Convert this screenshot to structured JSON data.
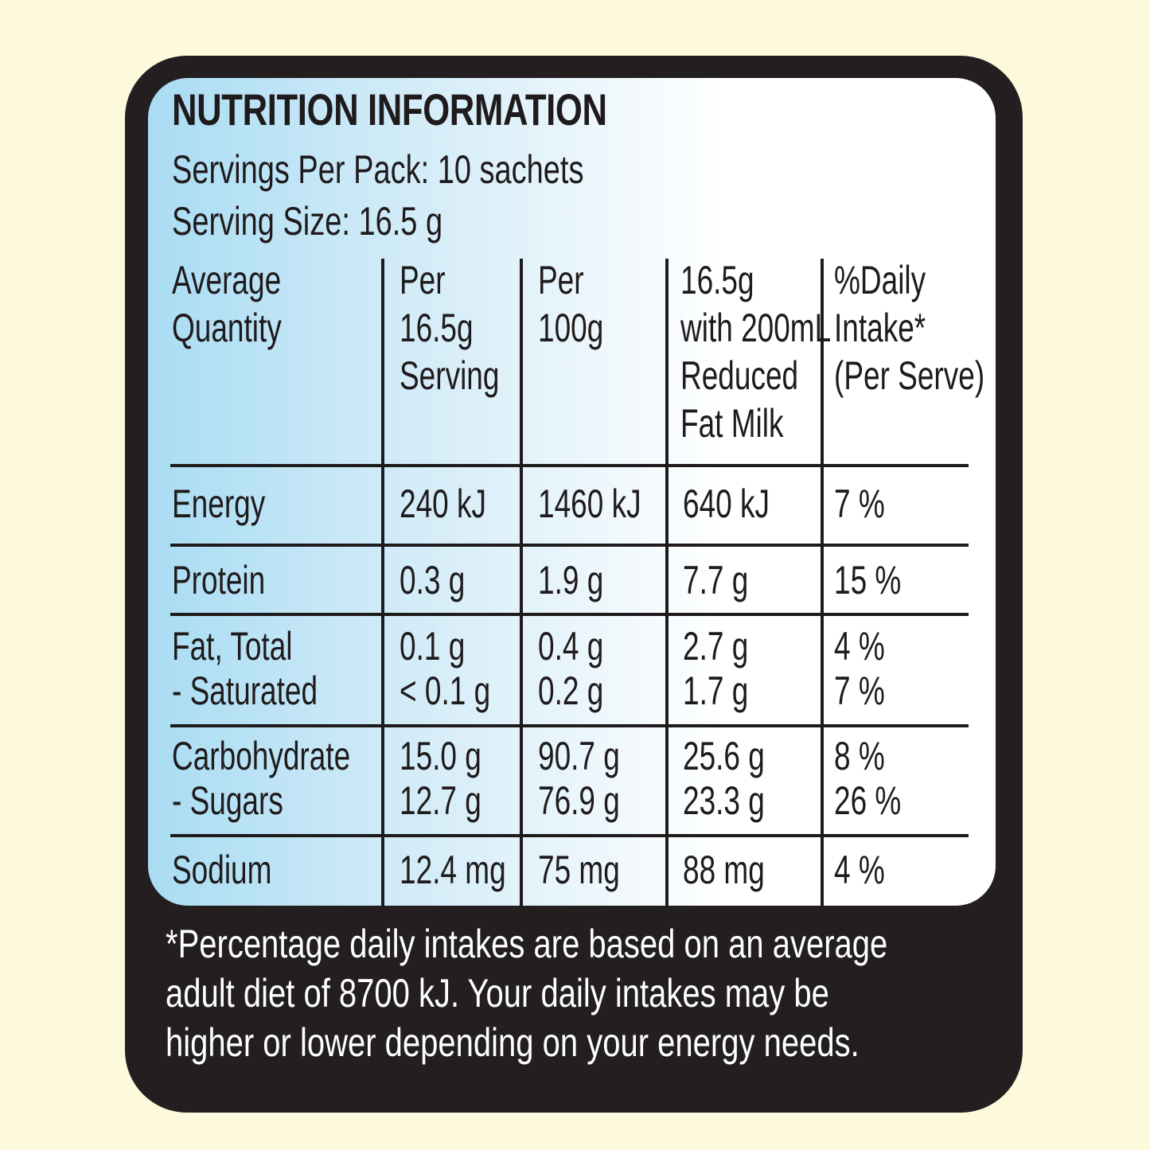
{
  "title": "NUTRITION INFORMATION",
  "servings_per_pack": "Servings Per Pack: 10 sachets",
  "serving_size": "Serving Size: 16.5 g",
  "columns": [
    "Average\nQuantity",
    "Per\n16.5g\nServing",
    "Per\n100g",
    "16.5g\nwith 200mL\nReduced\nFat Milk",
    "%Daily\nIntake*\n(Per Serve)"
  ],
  "rows": [
    {
      "nutrient": "Energy",
      "per_serving": "240 kJ",
      "per_100g": "1460 kJ",
      "with_milk": "640 kJ",
      "daily_intake": "7 %"
    },
    {
      "nutrient": "Protein",
      "per_serving": "0.3 g",
      "per_100g": "1.9 g",
      "with_milk": "7.7 g",
      "daily_intake": "15 %"
    },
    {
      "nutrient": "Fat, Total\n  - Saturated",
      "per_serving": "0.1 g\n< 0.1 g",
      "per_100g": "0.4 g\n0.2 g",
      "with_milk": "2.7 g\n1.7 g",
      "daily_intake": "4 %\n7 %"
    },
    {
      "nutrient": "Carbohydrate\n  - Sugars",
      "per_serving": "15.0 g\n12.7 g",
      "per_100g": "90.7 g\n76.9 g",
      "with_milk": "25.6 g\n23.3 g",
      "daily_intake": "8 %\n26 %"
    },
    {
      "nutrient": "Sodium",
      "per_serving": "12.4 mg",
      "per_100g": "75 mg",
      "with_milk": "88 mg",
      "daily_intake": "4 %"
    }
  ],
  "footnote": [
    "*Percentage daily intakes are based on an average",
    "adult diet of 8700 kJ. Your daily intakes may be",
    "higher or lower depending on your energy needs."
  ]
}
